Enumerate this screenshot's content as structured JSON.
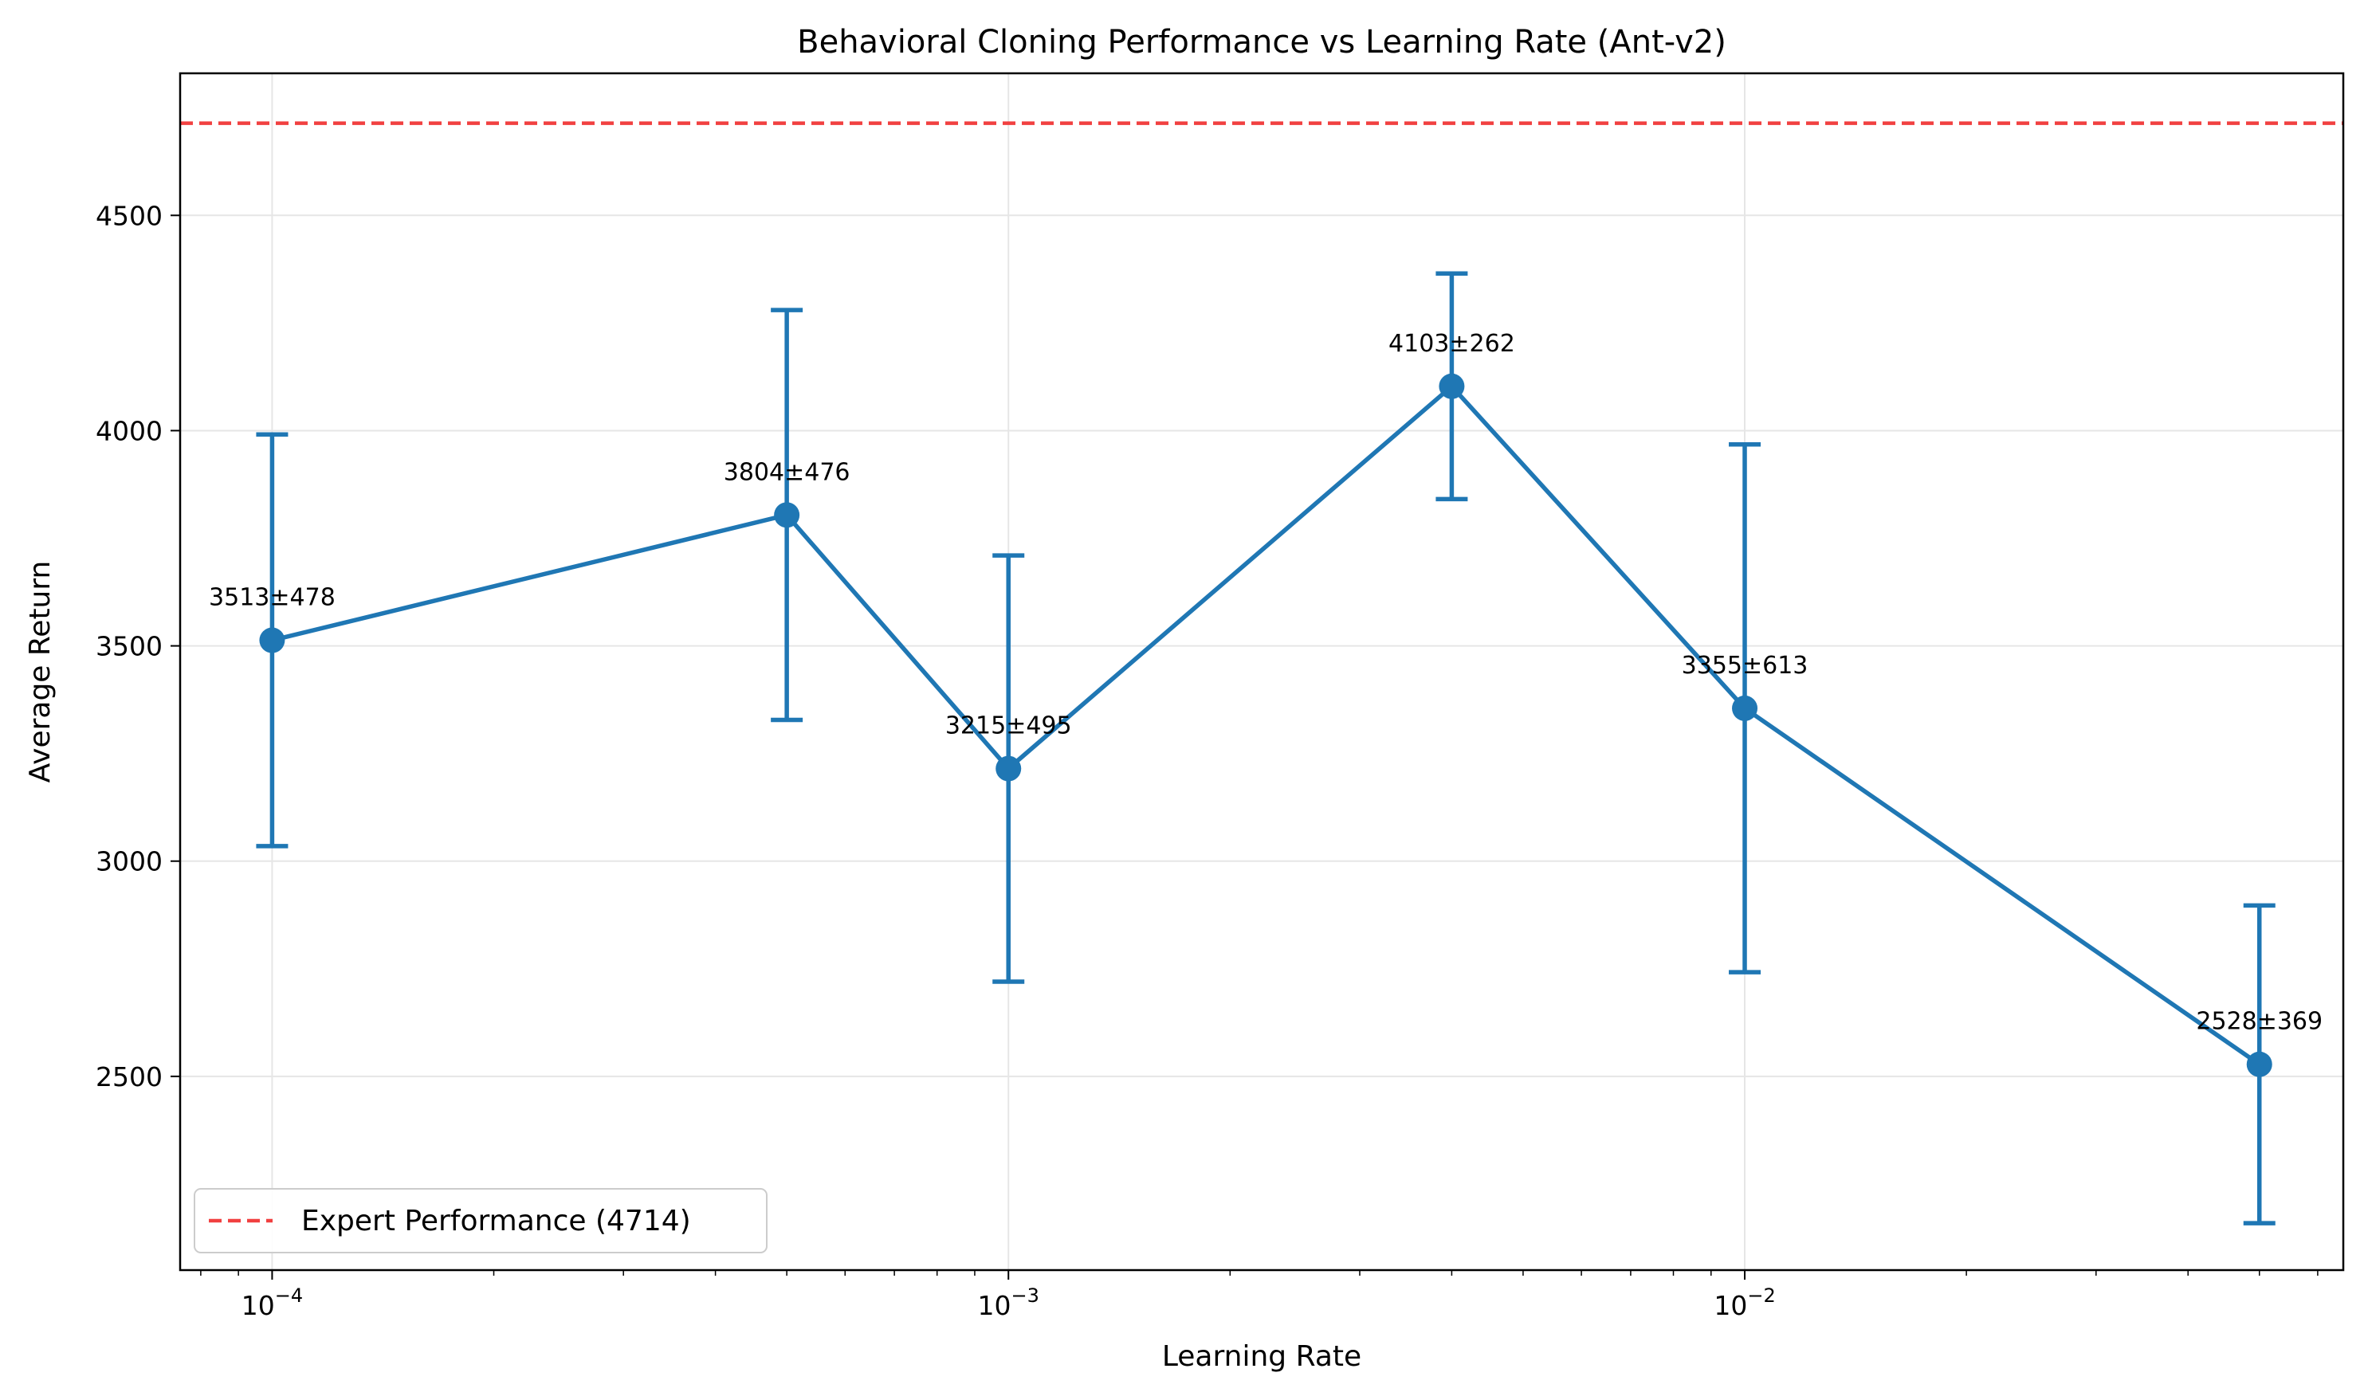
{
  "chart_data": {
    "type": "line",
    "title": "Behavioral Cloning Performance vs Learning Rate (Ant-v2)",
    "xlabel": "Learning Rate",
    "ylabel": "Average Return",
    "x_scale": "log",
    "xlim": [
      7.5e-05,
      0.065
    ],
    "ylim": [
      2050,
      4830
    ],
    "grid": true,
    "legend_position": "lower-left",
    "colors": {
      "series": "#1f77b4",
      "expert": "#f14040",
      "grid": "#e6e6e6"
    },
    "x_ticks": [
      {
        "value": 0.0001,
        "base": "10",
        "exp": "−4"
      },
      {
        "value": 0.001,
        "base": "10",
        "exp": "−3"
      },
      {
        "value": 0.01,
        "base": "10",
        "exp": "−2"
      }
    ],
    "y_ticks": [
      {
        "value": 2500,
        "label": "2500"
      },
      {
        "value": 3000,
        "label": "3000"
      },
      {
        "value": 3500,
        "label": "3500"
      },
      {
        "value": 4000,
        "label": "4000"
      },
      {
        "value": 4500,
        "label": "4500"
      }
    ],
    "series": [
      {
        "x": [
          0.0001,
          0.0005,
          0.001,
          0.004,
          0.01,
          0.05
        ],
        "y": [
          3513,
          3804,
          3215,
          4103,
          3355,
          2528
        ],
        "error": [
          478,
          476,
          495,
          262,
          613,
          369
        ],
        "labels": [
          "3513±478",
          "3804±476",
          "3215±495",
          "4103±262",
          "3355±613",
          "2528±369"
        ]
      }
    ],
    "reference_lines": [
      {
        "name": "Expert Performance (4714)",
        "y": 4714,
        "style": "dashed"
      }
    ]
  }
}
